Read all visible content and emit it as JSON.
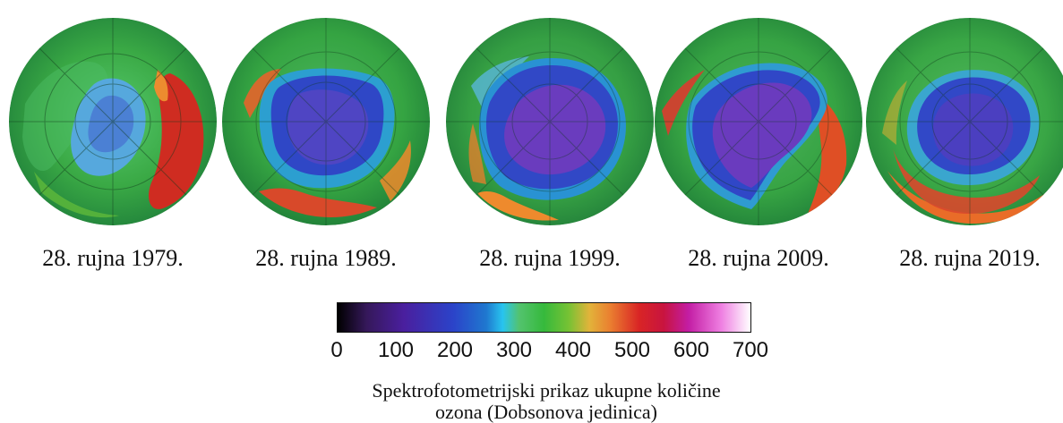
{
  "globes": [
    {
      "date": "28. rujna 1979.",
      "variant": "1979"
    },
    {
      "date": "28. rujna 1989.",
      "variant": "1989"
    },
    {
      "date": "28. rujna 1999.",
      "variant": "1999"
    },
    {
      "date": "28. rujna 2009.",
      "variant": "2009"
    },
    {
      "date": "28. rujna 2019.",
      "variant": "2019"
    }
  ],
  "scale": {
    "ticks": [
      "0",
      "100",
      "200",
      "300",
      "400",
      "500",
      "600",
      "700"
    ],
    "min": 0,
    "max": 700
  },
  "caption": {
    "line1": "Spektrofotometrijski prikaz ukupne količine",
    "line2": "ozona (Dobsonova jedinica)"
  },
  "colors": {
    "green": "#45b53d",
    "dark_green": "#1b8b3b",
    "blue": "#2d3fc6",
    "purple": "#6c3dbb",
    "red": "#d62828",
    "orange": "#d9812d",
    "cyan": "#2db7e8"
  }
}
